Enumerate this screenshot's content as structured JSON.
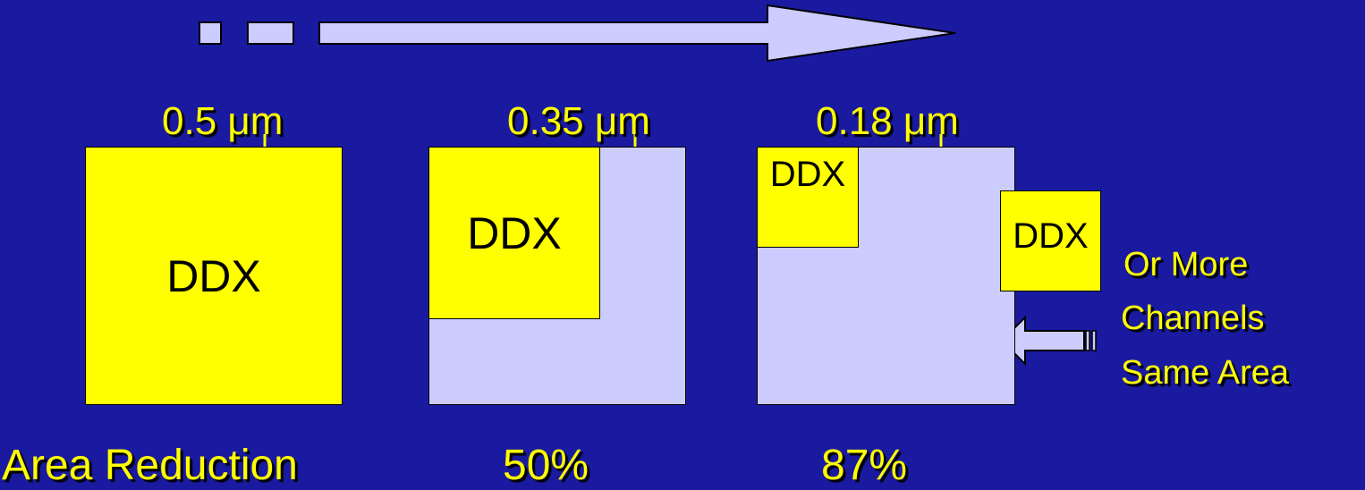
{
  "colors": {
    "background": "#1a1aa0",
    "highlight": "#ffff00",
    "chip": "#ccccff",
    "text_dark": "#000000"
  },
  "nodes": {
    "node_05": {
      "size_label": "0.5 μm",
      "block_label": "DDX"
    },
    "node_035": {
      "size_label": "0.35 μm",
      "block_label": "DDX"
    },
    "node_018": {
      "size_label": "0.18 μm",
      "block_label": "DDX",
      "extra_block_label": "DDX"
    }
  },
  "side_note": {
    "line1": "Or More",
    "line2": "Channels",
    "line3": "Same Area"
  },
  "footer": {
    "row_label": "Area Reduction",
    "reduction_035": "50%",
    "reduction_018": "87%"
  }
}
